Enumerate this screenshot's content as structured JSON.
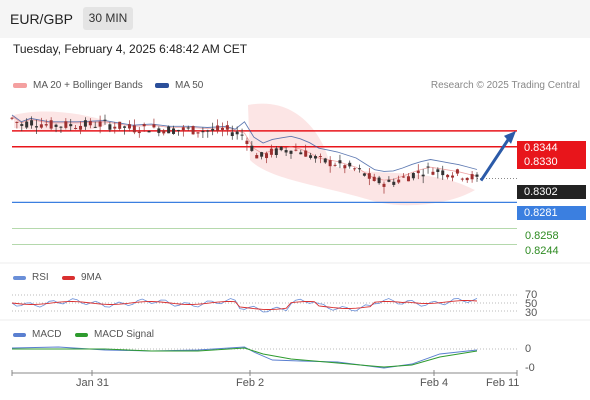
{
  "header": {
    "pair": "EUR/GBP",
    "timeframe": "30 MIN",
    "datetime": "Tuesday, February 4, 2025 6:48:42 AM CET",
    "research": "Research © 2025 Trading Central"
  },
  "legend": {
    "ma20": "MA 20 + Bollinger Bands",
    "ma50": "MA 50",
    "rsi": "RSI",
    "rsi_ma": "9MA",
    "macd": "MACD",
    "macd_signal": "MACD Signal"
  },
  "colors": {
    "resistance": "#e8151b",
    "support": "#3b7fe0",
    "target": "#2e8b22",
    "current": "#222222",
    "ma20": "#f4a0a0",
    "ma50": "#2b4f9a",
    "arrow": "#2b5aa8",
    "rsi": "#6a8fd8",
    "rsi_ma": "#d93030",
    "macd": "#5a7fd0",
    "macd_signal": "#2e9b2e"
  },
  "chart_data": [
    {
      "type": "candlestick",
      "title": "EUR/GBP 30 MIN",
      "x_ticks": [
        "Jan 31",
        "Feb 2",
        "Feb 4",
        "Feb 11"
      ],
      "price_levels": [
        {
          "value": 0.8344,
          "label": "0.8344",
          "kind": "resistance"
        },
        {
          "value": 0.833,
          "label": "0.8330",
          "kind": "resistance"
        },
        {
          "value": 0.8302,
          "label": "0.8302",
          "kind": "current"
        },
        {
          "value": 0.8281,
          "label": "0.8281",
          "kind": "support"
        },
        {
          "value": 0.8258,
          "label": "0.8258",
          "kind": "target"
        },
        {
          "value": 0.8244,
          "label": "0.8244",
          "kind": "target"
        }
      ],
      "series": [
        {
          "name": "MA 20 + Bollinger Bands",
          "type": "band"
        },
        {
          "name": "MA 50",
          "type": "line"
        }
      ],
      "ylim": [
        0.8232,
        0.838
      ],
      "price_path": [
        [
          0,
          0.8355
        ],
        [
          0.02,
          0.8349
        ],
        [
          0.04,
          0.8352
        ],
        [
          0.08,
          0.8349
        ],
        [
          0.14,
          0.8349
        ],
        [
          0.2,
          0.835
        ],
        [
          0.26,
          0.8346
        ],
        [
          0.3,
          0.8347
        ],
        [
          0.34,
          0.8345
        ],
        [
          0.38,
          0.8345
        ],
        [
          0.42,
          0.8344
        ],
        [
          0.46,
          0.8345
        ],
        [
          0.5,
          0.834
        ],
        [
          0.53,
          0.832
        ],
        [
          0.56,
          0.8325
        ],
        [
          0.6,
          0.8328
        ],
        [
          0.63,
          0.8325
        ],
        [
          0.66,
          0.8318
        ],
        [
          0.7,
          0.8315
        ],
        [
          0.74,
          0.831
        ],
        [
          0.78,
          0.83
        ],
        [
          0.81,
          0.8298
        ],
        [
          0.84,
          0.8302
        ],
        [
          0.87,
          0.8307
        ],
        [
          0.9,
          0.831
        ],
        [
          0.93,
          0.8308
        ],
        [
          0.96,
          0.8306
        ],
        [
          1.0,
          0.8302
        ]
      ]
    },
    {
      "type": "line",
      "title": "RSI",
      "y_ticks": [
        "70",
        "50",
        "30"
      ],
      "series": [
        {
          "name": "RSI"
        },
        {
          "name": "9MA"
        }
      ]
    },
    {
      "type": "line",
      "title": "MACD",
      "y_ticks": [
        "0",
        "-0"
      ],
      "series": [
        {
          "name": "MACD"
        },
        {
          "name": "MACD Signal"
        }
      ]
    }
  ]
}
